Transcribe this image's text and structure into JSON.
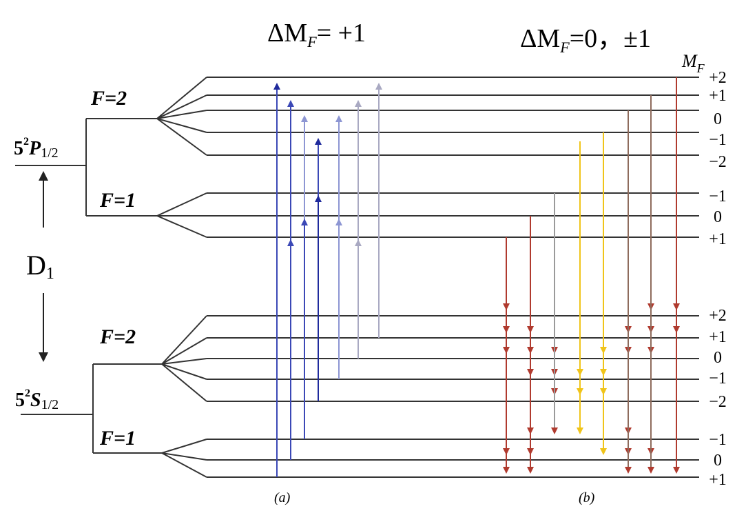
{
  "headers": {
    "left_delta": "ΔM",
    "left_sub": "F",
    "left_eq": "= +1",
    "right_delta": "ΔM",
    "right_sub": "F",
    "right_eq": "=0，±1",
    "mf_label": "M",
    "mf_sub": "F"
  },
  "levels": {
    "p_state": {
      "n": "5",
      "sup": "2",
      "letter": "P",
      "sub": "1/2"
    },
    "s_state": {
      "n": "5",
      "sup": "2",
      "letter": "S",
      "sub": "1/2"
    },
    "transition": {
      "letter": "D",
      "sub": "1"
    }
  },
  "hyperfine": {
    "p_f2": "F=2",
    "p_f1": "F=1",
    "s_f2": "F=2",
    "s_f1": "F=1"
  },
  "mf_labels": {
    "p_f2": [
      "+2",
      "+1",
      "0",
      "−1",
      "−2"
    ],
    "p_f1": [
      "−1",
      "0",
      "+1"
    ],
    "s_f2": [
      "+2",
      "+1",
      "0",
      "−1",
      "−2"
    ],
    "s_f1": [
      "−1",
      "0",
      "+1"
    ]
  },
  "captions": {
    "a": "(a)",
    "b": "(b)"
  },
  "colors": {
    "lines": "#333333",
    "excite_dark": "#1f2a9c",
    "excite_mid": "#3b48b6",
    "excite_light": "#8d96d3",
    "excite_pale": "#a9a9c2",
    "decay_red": "#b03a2e",
    "decay_brown": "#8e6b5c",
    "decay_gray": "#9a9a9a",
    "decay_yellow": "#f0c419"
  }
}
